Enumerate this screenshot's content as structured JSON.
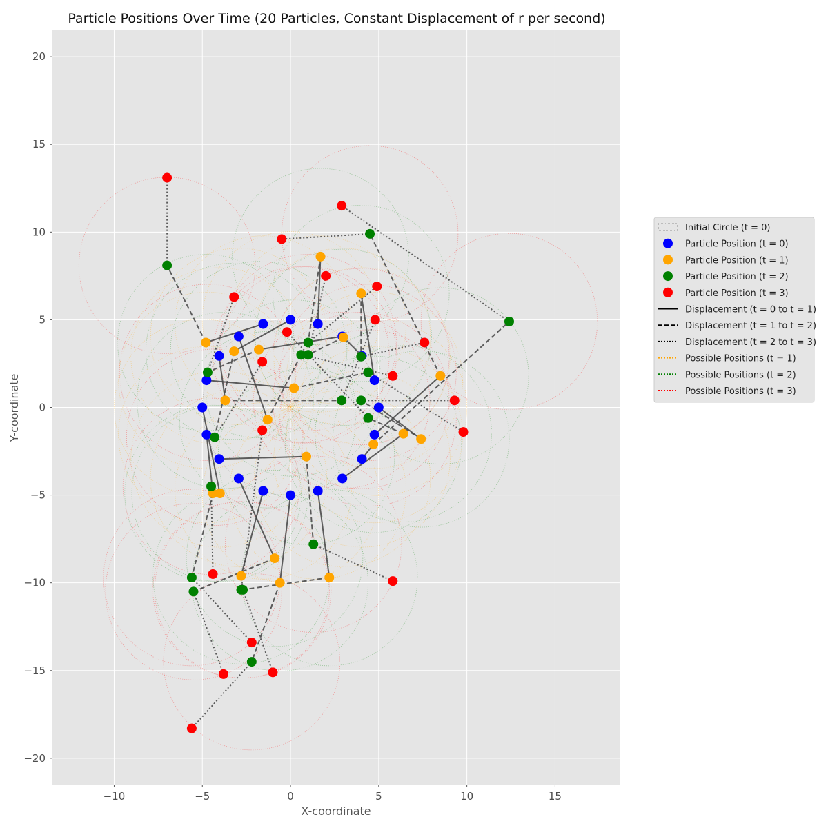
{
  "chart_data": {
    "type": "scatter",
    "title": "Particle Positions Over Time (20 Particles, Constant Displacement of r per second)",
    "xlabel": "X-coordinate",
    "ylabel": "Y-coordinate",
    "xlim": [
      -13.5,
      18.7
    ],
    "ylim": [
      -21.5,
      21.5
    ],
    "xticks": [
      -10,
      -5,
      0,
      5,
      10,
      15
    ],
    "yticks": [
      -20,
      -15,
      -10,
      -5,
      0,
      5,
      10,
      15,
      20
    ],
    "xtick_labels": [
      "−10",
      "−5",
      "0",
      "5",
      "10",
      "15"
    ],
    "ytick_labels": [
      "−20",
      "−15",
      "−10",
      "−5",
      "0",
      "5",
      "10",
      "15",
      "20"
    ],
    "grid": true,
    "radius": 5,
    "colors": {
      "t0": "#0000ff",
      "t1": "#ffa500",
      "t2": "#008000",
      "t3": "#ff0000",
      "line": "#444444",
      "background": "#e5e5e5"
    },
    "legend": {
      "placement": "right",
      "items": [
        {
          "label": "Initial Circle (t = 0)",
          "kind": "patch"
        },
        {
          "label": "Particle Position (t = 0)",
          "kind": "marker",
          "color": "#0000ff"
        },
        {
          "label": "Particle Position (t = 1)",
          "kind": "marker",
          "color": "#ffa500"
        },
        {
          "label": "Particle Position (t = 2)",
          "kind": "marker",
          "color": "#008000"
        },
        {
          "label": "Particle Position (t = 3)",
          "kind": "marker",
          "color": "#ff0000"
        },
        {
          "label": "Displacement (t = 0 to t = 1)",
          "kind": "line",
          "dash": "solid",
          "color": "#000000"
        },
        {
          "label": "Displacement (t = 1 to t = 2)",
          "kind": "line",
          "dash": "dashed",
          "color": "#000000"
        },
        {
          "label": "Displacement (t = 2 to t = 3)",
          "kind": "line",
          "dash": "dotted",
          "color": "#000000"
        },
        {
          "label": "Possible Positions (t = 1)",
          "kind": "line",
          "dash": "dotted",
          "color": "#ffa500"
        },
        {
          "label": "Possible Positions (t = 2)",
          "kind": "line",
          "dash": "dotted",
          "color": "#008000"
        },
        {
          "label": "Possible Positions (t = 3)",
          "kind": "line",
          "dash": "dotted",
          "color": "#ff0000"
        }
      ]
    },
    "particles": [
      {
        "t0": [
          5.0,
          0.0
        ],
        "t1": [
          7.4,
          -1.8
        ],
        "t2": [
          4.0,
          0.4
        ],
        "t3": [
          9.3,
          0.4
        ]
      },
      {
        "t0": [
          4.76,
          1.55
        ],
        "t1": [
          4.0,
          6.5
        ],
        "t2": [
          4.0,
          2.9
        ],
        "t3": [
          7.6,
          3.7
        ]
      },
      {
        "t0": [
          4.05,
          2.94
        ],
        "t1": [
          3.0,
          4.0
        ],
        "t2": [
          1.0,
          3.0
        ],
        "t3": [
          2.0,
          7.5
        ]
      },
      {
        "t0": [
          2.94,
          4.05
        ],
        "t1": [
          -1.8,
          3.3
        ],
        "t2": [
          -4.7,
          2.0
        ],
        "t3": [
          -3.2,
          6.3
        ]
      },
      {
        "t0": [
          1.55,
          4.76
        ],
        "t1": [
          1.7,
          8.6
        ],
        "t2": [
          1.0,
          3.7
        ],
        "t3": [
          4.9,
          6.9
        ]
      },
      {
        "t0": [
          0.0,
          5.0
        ],
        "t1": [
          -3.2,
          3.2
        ],
        "t2": [
          -4.3,
          -1.7
        ],
        "t3": [
          -1.6,
          2.6
        ]
      },
      {
        "t0": [
          -1.55,
          4.76
        ],
        "t1": [
          -4.8,
          3.7
        ],
        "t2": [
          -7.0,
          8.1
        ],
        "t3": [
          -7.0,
          13.1
        ]
      },
      {
        "t0": [
          -2.94,
          4.05
        ],
        "t1": [
          -1.3,
          -0.7
        ],
        "t2": [
          0.6,
          3.0
        ],
        "t3": [
          5.8,
          1.8
        ]
      },
      {
        "t0": [
          -4.05,
          2.94
        ],
        "t1": [
          -3.7,
          0.4
        ],
        "t2": [
          2.9,
          0.4
        ],
        "t3": [
          4.8,
          5.0
        ]
      },
      {
        "t0": [
          -4.76,
          1.55
        ],
        "t1": [
          0.2,
          1.1
        ],
        "t2": [
          4.4,
          2.0
        ],
        "t3": [
          9.8,
          -1.4
        ]
      },
      {
        "t0": [
          -5.0,
          0.0
        ],
        "t1": [
          -4.0,
          -4.9
        ],
        "t2": [
          -4.5,
          -4.5
        ],
        "t3": [
          -4.4,
          -9.5
        ]
      },
      {
        "t0": [
          -4.76,
          -1.55
        ],
        "t1": [
          -4.4,
          -4.9
        ],
        "t2": [
          -5.6,
          -9.7
        ],
        "t3": [
          -2.2,
          -13.4
        ]
      },
      {
        "t0": [
          -4.05,
          -2.94
        ],
        "t1": [
          0.9,
          -2.8
        ],
        "t2": [
          1.3,
          -7.8
        ],
        "t3": [
          5.8,
          -9.9
        ]
      },
      {
        "t0": [
          -2.94,
          -4.05
        ],
        "t1": [
          -0.9,
          -8.6
        ],
        "t2": [
          -5.5,
          -10.5
        ],
        "t3": [
          -3.8,
          -15.2
        ]
      },
      {
        "t0": [
          -1.55,
          -4.76
        ],
        "t1": [
          -2.8,
          -9.6
        ],
        "t2": [
          -2.7,
          -10.4
        ],
        "t3": [
          -1.0,
          -15.1
        ]
      },
      {
        "t0": [
          0.0,
          -5.0
        ],
        "t1": [
          -0.6,
          -10.0
        ],
        "t2": [
          -2.2,
          -14.5
        ],
        "t3": [
          -5.6,
          -18.3
        ]
      },
      {
        "t0": [
          1.55,
          -4.76
        ],
        "t1": [
          2.2,
          -9.7
        ],
        "t2": [
          -2.8,
          -10.4
        ],
        "t3": [
          -1.6,
          -1.3
        ]
      },
      {
        "t0": [
          2.94,
          -4.05
        ],
        "t1": [
          6.4,
          -1.5
        ],
        "t2": [
          4.4,
          -0.6
        ],
        "t3": [
          -0.2,
          4.3
        ]
      },
      {
        "t0": [
          4.05,
          -2.94
        ],
        "t1": [
          4.7,
          -2.1
        ],
        "t2": [
          12.4,
          4.9
        ],
        "t3": [
          2.9,
          11.5
        ]
      },
      {
        "t0": [
          4.76,
          -1.55
        ],
        "t1": [
          8.5,
          1.8
        ],
        "t2": [
          4.5,
          9.9
        ],
        "t3": [
          -0.5,
          9.6
        ]
      }
    ]
  }
}
